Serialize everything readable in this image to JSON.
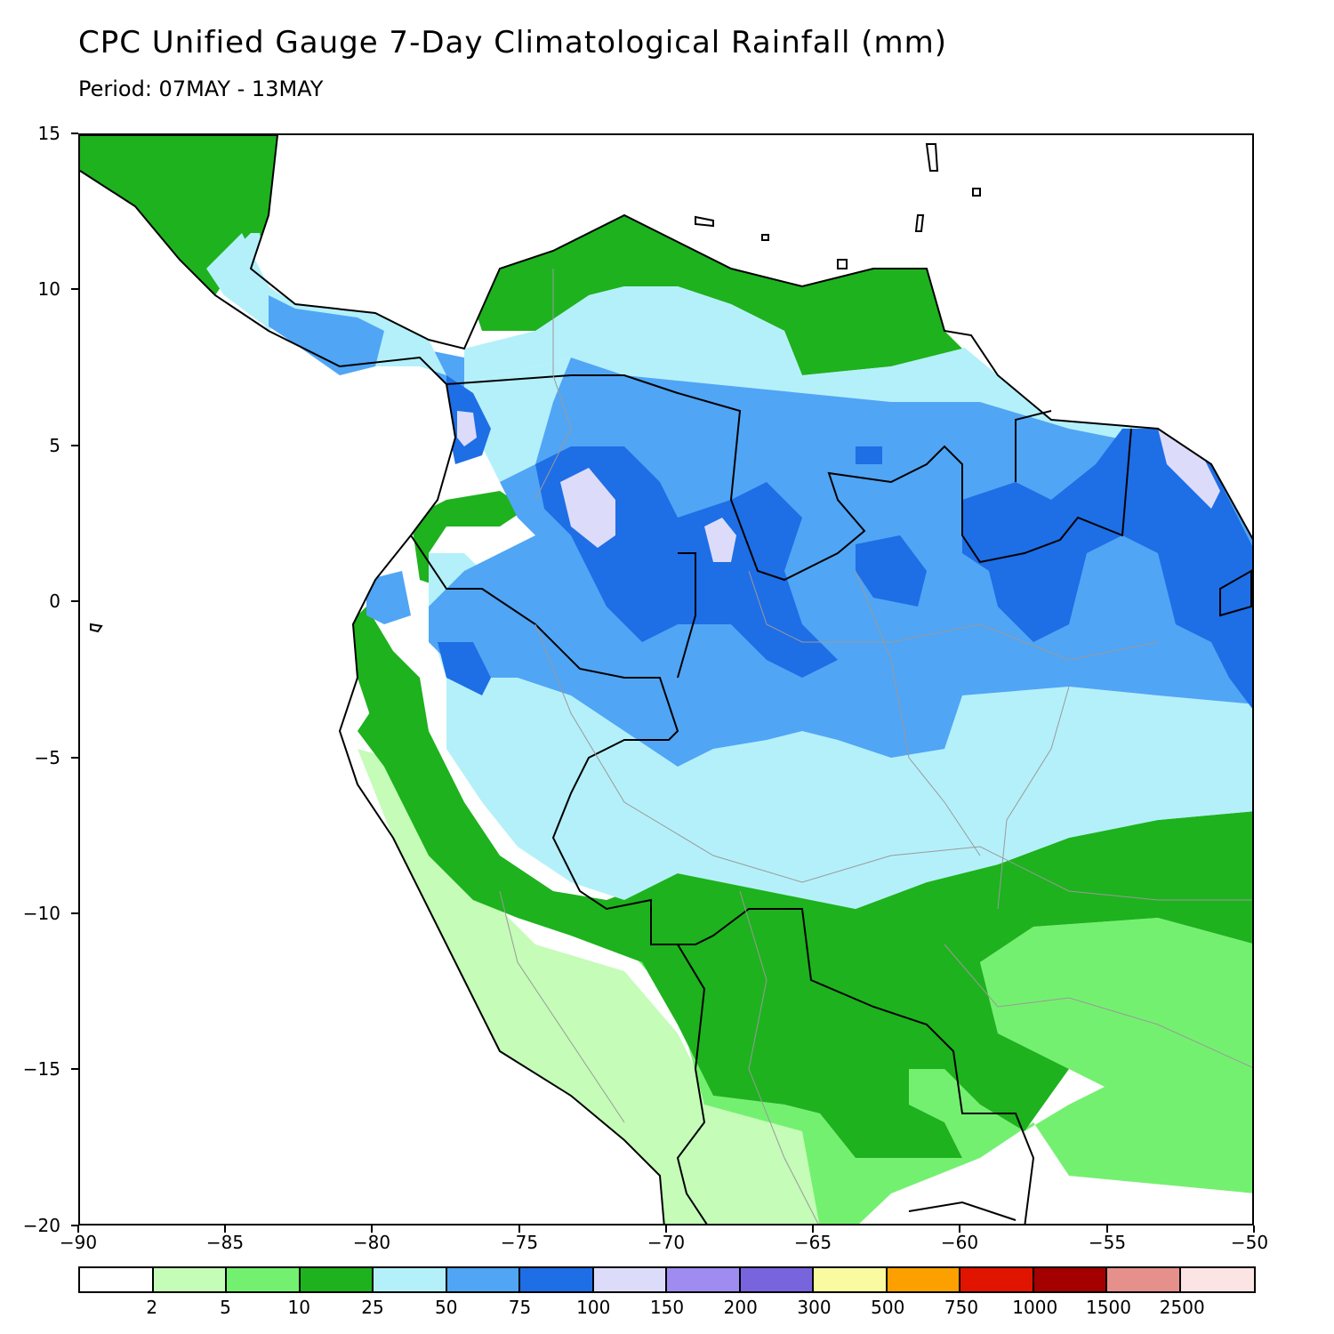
{
  "title": "CPC Unified Gauge 7-Day Climatological Rainfall (mm)",
  "subtitle": "Period: 07MAY - 13MAY",
  "map": {
    "lon_range": [
      -90,
      -50
    ],
    "lat_range": [
      -20,
      15
    ],
    "y_ticks": [
      "15",
      "10",
      "5",
      "0",
      "−5",
      "−10",
      "−15",
      "−20"
    ],
    "x_ticks": [
      "−90",
      "−85",
      "−80",
      "−75",
      "−70",
      "−65",
      "−60",
      "−55",
      "−50"
    ]
  },
  "legend": {
    "colors": [
      "#ffffff",
      "#c4fcb8",
      "#74f070",
      "#1eb21e",
      "#b4f0fa",
      "#50a5f5",
      "#1e6ee6",
      "#dcdcfa",
      "#a08cf0",
      "#7864dc",
      "#fafaa0",
      "#fca000",
      "#e11400",
      "#a50000",
      "#e6908c",
      "#fce4e4"
    ],
    "labels": [
      "2",
      "5",
      "10",
      "25",
      "50",
      "75",
      "100",
      "150",
      "200",
      "300",
      "500",
      "750",
      "1000",
      "1500",
      "2500"
    ]
  }
}
